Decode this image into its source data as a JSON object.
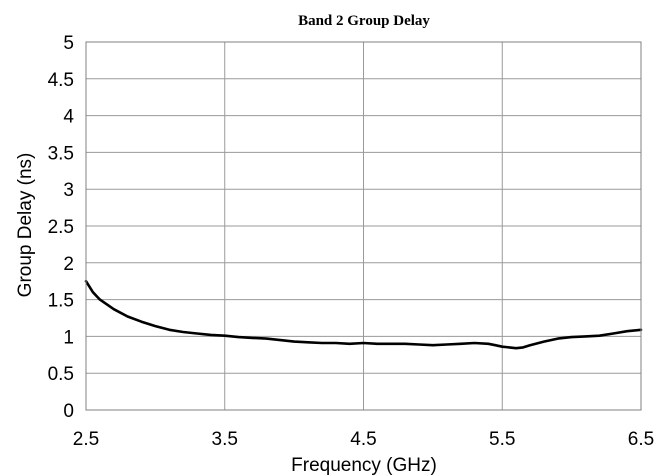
{
  "chart_data": {
    "type": "line",
    "title": "Band 2 Group Delay",
    "xlabel": "Frequency (GHz)",
    "ylabel": "Group Delay (ns)",
    "xlim": [
      2.5,
      6.5
    ],
    "ylim": [
      0,
      5
    ],
    "xticks": [
      "2.5",
      "3.5",
      "4.5",
      "5.5",
      "6.5"
    ],
    "yticks": [
      "0",
      "0.5",
      "1",
      "1.5",
      "2",
      "2.5",
      "3",
      "3.5",
      "4",
      "4.5",
      "5"
    ],
    "grid": true,
    "legend": "none",
    "line_color": "#000000",
    "series": [
      {
        "x": [
          2.5,
          2.55,
          2.6,
          2.7,
          2.8,
          2.9,
          3.0,
          3.1,
          3.2,
          3.3,
          3.4,
          3.5,
          3.6,
          3.7,
          3.8,
          3.9,
          4.0,
          4.1,
          4.2,
          4.3,
          4.4,
          4.5,
          4.6,
          4.7,
          4.8,
          4.9,
          5.0,
          5.1,
          5.2,
          5.3,
          5.4,
          5.45,
          5.5,
          5.55,
          5.6,
          5.65,
          5.7,
          5.8,
          5.9,
          6.0,
          6.1,
          6.2,
          6.3,
          6.4,
          6.5
        ],
        "values": [
          1.75,
          1.6,
          1.5,
          1.37,
          1.27,
          1.2,
          1.14,
          1.09,
          1.06,
          1.04,
          1.02,
          1.01,
          0.99,
          0.98,
          0.97,
          0.95,
          0.93,
          0.92,
          0.91,
          0.91,
          0.9,
          0.91,
          0.9,
          0.9,
          0.9,
          0.89,
          0.88,
          0.89,
          0.9,
          0.91,
          0.9,
          0.88,
          0.86,
          0.85,
          0.84,
          0.85,
          0.88,
          0.93,
          0.97,
          0.99,
          1.0,
          1.01,
          1.04,
          1.07,
          1.09
        ]
      }
    ]
  }
}
